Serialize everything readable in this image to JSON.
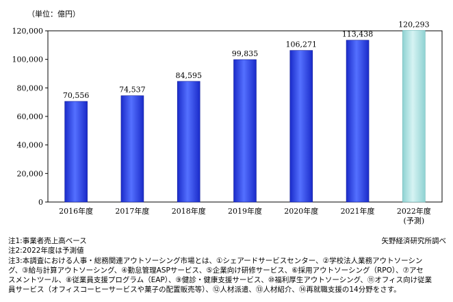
{
  "chart_data": {
    "type": "bar",
    "unit_label": "（単位：億円）",
    "categories": [
      "2016年度",
      "2017年度",
      "2018年度",
      "2019年度",
      "2020年度",
      "2021年度",
      "2022年度"
    ],
    "category_sublabels": [
      "",
      "",
      "",
      "",
      "",
      "",
      "(予測)"
    ],
    "values": [
      70556,
      74537,
      84595,
      99835,
      106271,
      113438,
      120293
    ],
    "value_labels": [
      "70,556",
      "74,537",
      "84,595",
      "99,835",
      "106,271",
      "113,438",
      "120,293"
    ],
    "forecast": [
      false,
      false,
      false,
      false,
      false,
      false,
      true
    ],
    "ylim": [
      0,
      120000
    ],
    "yticks": [
      0,
      20000,
      40000,
      60000,
      80000,
      100000,
      120000
    ],
    "ytick_labels": [
      "0",
      "20,000",
      "40,000",
      "60,000",
      "80,000",
      "100,000",
      "120,000"
    ],
    "colors": {
      "actual": "#1c2fd6",
      "actual_light": "#4f6cff",
      "forecast": "#9fdcdc",
      "forecast_light": "#d6f3f3"
    }
  },
  "notes": [
    "注1:事業者売上高ベース",
    "注2:2022年度は予測値",
    "注3:本調査における人事・総務関連アウトソーシング市場とは、①シェアードサービスセンター、②学校法人業務アウトソーシン",
    "グ、③給与計算アウトソーシング、④勤怠管理ASPサービス、⑤企業向け研修サービス、⑥採用アウトソーシング（RPO）、⑦アセ",
    "スメントツール、⑧従業員支援プログラム（EAP）、⑨健診・健康支援サービス、⑩福利厚生アウトソーシング、⑪オフィス向け従業",
    "員サービス（オフィスコーヒーサービスや菓子の配置販売等）、⑫人材派遣、⑬人材紹介、⑭再就職支援の14分野をさす。"
  ],
  "source": "矢野経済研究所調べ"
}
